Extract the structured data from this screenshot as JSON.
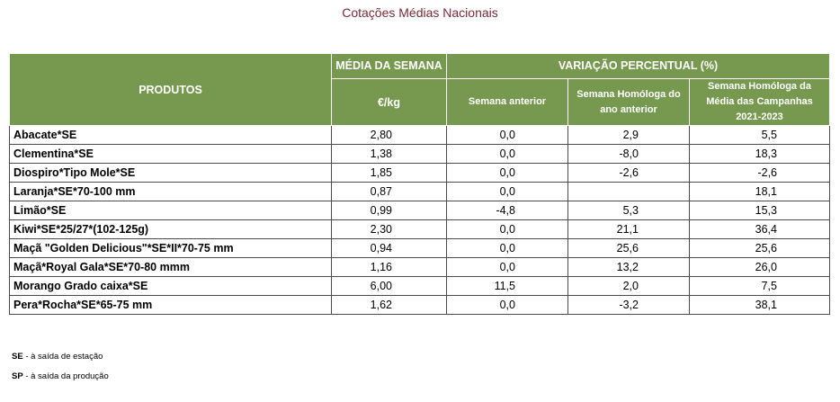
{
  "title": "Cotações Médias Nacionais",
  "headers": {
    "produtos": "PRODUTOS",
    "media_semana": "MÉDIA DA SEMANA",
    "variacao": "VARIAÇÃO PERCENTUAL (%)",
    "unidade": "€/kg",
    "semana_anterior": "Semana anterior",
    "semana_homologa": "Semana Homóloga do ano anterior",
    "semana_homologa_campanhas": "Semana Homóloga da Média das Campanhas 2021-2023"
  },
  "rows": [
    {
      "produto": "Abacate*SE",
      "media": "2,80",
      "sem_ant": "0,0",
      "hom_ano": "2,9",
      "hom_camp": "5,5"
    },
    {
      "produto": "Clementina*SE",
      "media": "1,38",
      "sem_ant": "0,0",
      "hom_ano": "-8,0",
      "hom_camp": "18,3"
    },
    {
      "produto": "Diospiro*Tipo Mole*SE",
      "media": "1,85",
      "sem_ant": "0,0",
      "hom_ano": "-2,6",
      "hom_camp": "-2,6"
    },
    {
      "produto": "Laranja*SE*70-100 mm",
      "media": "0,87",
      "sem_ant": "0,0",
      "hom_ano": "",
      "hom_camp": "18,1"
    },
    {
      "produto": "Limão*SE",
      "media": "0,99",
      "sem_ant": "-4,8",
      "hom_ano": "5,3",
      "hom_camp": "15,3"
    },
    {
      "produto": "Kiwi*SE*25/27*(102-125g)",
      "media": "2,30",
      "sem_ant": "0,0",
      "hom_ano": "21,1",
      "hom_camp": "36,4"
    },
    {
      "produto": "Maçã \"Golden Delicious\"*SE*II*70-75 mm",
      "media": "0,94",
      "sem_ant": "0,0",
      "hom_ano": "25,6",
      "hom_camp": "25,6"
    },
    {
      "produto": "Maçã*Royal Gala*SE*70-80 mmm",
      "media": "1,16",
      "sem_ant": "0,0",
      "hom_ano": "13,2",
      "hom_camp": "26,0"
    },
    {
      "produto": "Morango Grado caixa*SE",
      "media": "6,00",
      "sem_ant": "11,5",
      "hom_ano": "2,0",
      "hom_camp": "7,5"
    },
    {
      "produto": "Pera*Rocha*SE*65-75 mm",
      "media": "1,62",
      "sem_ant": "0,0",
      "hom_ano": "-3,2",
      "hom_camp": "38,1"
    }
  ],
  "footnotes": [
    {
      "code": "SE",
      "text": " - à saída de estação"
    },
    {
      "code": "SP",
      "text": " - à saída da produção"
    }
  ]
}
